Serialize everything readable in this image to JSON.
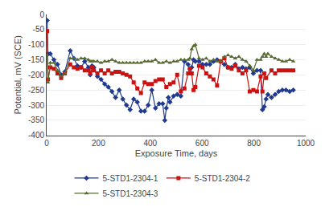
{
  "chart_data": {
    "type": "line",
    "xlabel": "Exposure Time, days",
    "ylabel": "Potential, mV (SCE)",
    "xlim": [
      0,
      1000
    ],
    "ylim": [
      -400,
      0
    ],
    "xticks": [
      0,
      200,
      400,
      600,
      800,
      1000
    ],
    "yticks": [
      0,
      -50,
      -100,
      -150,
      -200,
      -250,
      -300,
      -350,
      -400
    ],
    "grid": "y",
    "legend": "bottom",
    "series": [
      {
        "name": "5-STD1-2304-1",
        "color": "#1f3a8f",
        "marker": "diamond",
        "x": [
          2,
          5,
          14,
          28,
          42,
          56,
          70,
          91,
          105,
          119,
          133,
          147,
          161,
          168,
          175,
          182,
          196,
          210,
          224,
          238,
          252,
          266,
          280,
          294,
          308,
          322,
          336,
          350,
          364,
          378,
          392,
          406,
          420,
          434,
          448,
          456,
          462,
          470,
          476,
          490,
          504,
          518,
          532,
          546,
          553,
          560,
          567,
          574,
          588,
          602,
          616,
          630,
          644,
          658,
          672,
          686,
          700,
          714,
          728,
          742,
          756,
          770,
          784,
          798,
          812,
          826,
          833,
          840,
          847,
          854,
          868,
          882,
          896,
          910,
          924,
          938,
          952
        ],
        "values": [
          -20,
          -130,
          -130,
          -150,
          -165,
          -200,
          -190,
          -120,
          -145,
          -170,
          -175,
          -155,
          -175,
          -200,
          -170,
          -175,
          -205,
          -215,
          -230,
          -240,
          -255,
          -275,
          -250,
          -280,
          -300,
          -315,
          -280,
          -290,
          -320,
          -320,
          -300,
          -250,
          -310,
          -295,
          -295,
          -350,
          -310,
          -275,
          -290,
          -270,
          -265,
          -270,
          -155,
          -165,
          -180,
          -175,
          -150,
          -155,
          -155,
          -165,
          -165,
          -165,
          -155,
          -150,
          -155,
          -165,
          -175,
          -175,
          -165,
          -180,
          -175,
          -180,
          -175,
          -195,
          -185,
          -185,
          -315,
          -305,
          -280,
          -265,
          -275,
          -265,
          -255,
          -250,
          -250,
          -255,
          -250
        ]
      },
      {
        "name": "5-STD1-2304-2",
        "color": "#cc1111",
        "marker": "square",
        "x": [
          2,
          5,
          14,
          28,
          42,
          56,
          70,
          91,
          105,
          119,
          133,
          147,
          161,
          168,
          175,
          182,
          196,
          210,
          224,
          238,
          252,
          266,
          280,
          294,
          308,
          322,
          336,
          350,
          364,
          378,
          392,
          406,
          420,
          434,
          448,
          462,
          476,
          490,
          504,
          518,
          532,
          546,
          553,
          560,
          567,
          574,
          588,
          602,
          616,
          630,
          644,
          658,
          672,
          686,
          700,
          714,
          728,
          742,
          756,
          770,
          784,
          798,
          812,
          826,
          833,
          840,
          847,
          868,
          882,
          896,
          910,
          924,
          938,
          952
        ],
        "values": [
          -55,
          -215,
          -175,
          -180,
          -195,
          -210,
          -195,
          -165,
          -175,
          -180,
          -175,
          -185,
          -185,
          -195,
          -175,
          -185,
          -195,
          -185,
          -195,
          -185,
          -195,
          -190,
          -190,
          -195,
          -200,
          -205,
          -225,
          -245,
          -260,
          -225,
          -230,
          -230,
          -220,
          -215,
          -215,
          -240,
          -230,
          -225,
          -200,
          -255,
          -245,
          -195,
          -180,
          -195,
          -250,
          -240,
          -170,
          -175,
          -195,
          -205,
          -215,
          -235,
          -155,
          -145,
          -175,
          -180,
          -170,
          -185,
          -195,
          -185,
          -255,
          -250,
          -255,
          -205,
          -255,
          -195,
          -210,
          -185,
          -195,
          -185,
          -185,
          -185,
          -185,
          -185
        ]
      },
      {
        "name": "5-STD1-2304-3",
        "color": "#556b2f",
        "marker": "triangle-up",
        "x": [
          2,
          5,
          14,
          28,
          42,
          56,
          70,
          91,
          105,
          119,
          133,
          147,
          161,
          168,
          175,
          182,
          196,
          210,
          224,
          238,
          252,
          266,
          280,
          294,
          308,
          322,
          336,
          350,
          364,
          378,
          392,
          406,
          420,
          434,
          448,
          462,
          476,
          490,
          504,
          518,
          532,
          546,
          553,
          560,
          567,
          574,
          588,
          602,
          616,
          630,
          644,
          658,
          672,
          686,
          700,
          714,
          728,
          742,
          756,
          770,
          784,
          798,
          812,
          826,
          833,
          840,
          847,
          854,
          868,
          882,
          896,
          910,
          924,
          938,
          952
        ],
        "values": [
          -135,
          -225,
          -160,
          -160,
          -185,
          -205,
          -195,
          -145,
          -145,
          -150,
          -145,
          -145,
          -150,
          -155,
          -155,
          -155,
          -155,
          -160,
          -155,
          -155,
          -150,
          -155,
          -160,
          -160,
          -160,
          -160,
          -160,
          -160,
          -160,
          -155,
          -155,
          -155,
          -150,
          -160,
          -160,
          -155,
          -160,
          -155,
          -155,
          -150,
          -150,
          -150,
          -145,
          -115,
          -105,
          -100,
          -145,
          -150,
          -145,
          -155,
          -150,
          -155,
          -155,
          -140,
          -135,
          -140,
          -145,
          -140,
          -150,
          -155,
          -170,
          -185,
          -150,
          -150,
          -140,
          -130,
          -140,
          -130,
          -140,
          -145,
          -150,
          -155,
          -155,
          -150,
          -155
        ]
      }
    ]
  }
}
